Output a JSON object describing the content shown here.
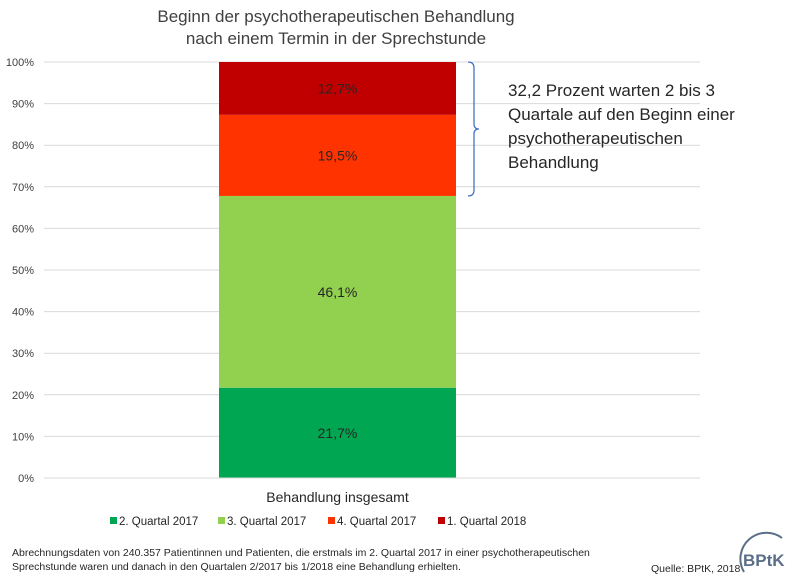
{
  "chart_data": {
    "type": "bar",
    "stacked": true,
    "title": [
      "Beginn der psychotherapeutischen Behandlung",
      "nach einem Termin in der Sprechstunde"
    ],
    "categories": [
      "Behandlung insgesamt"
    ],
    "xlabel": "",
    "ylabel": "",
    "ylim": [
      0,
      100
    ],
    "yticks": [
      "0%",
      "10%",
      "20%",
      "30%",
      "40%",
      "50%",
      "60%",
      "70%",
      "80%",
      "90%",
      "100%"
    ],
    "grid": true,
    "series": [
      {
        "name": "2. Quartal 2017",
        "values": [
          21.7
        ],
        "label": "21,7%",
        "color": "#00a651"
      },
      {
        "name": "3. Quartal 2017",
        "values": [
          46.1
        ],
        "label": "46,1%",
        "color": "#92d050"
      },
      {
        "name": "4. Quartal 2017",
        "values": [
          19.5
        ],
        "label": "19,5%",
        "color": "#ff3300"
      },
      {
        "name": "1. Quartal 2018",
        "values": [
          12.7
        ],
        "label": "12,7%",
        "color": "#c00000"
      }
    ],
    "legend_position": "bottom",
    "annotation": {
      "lines": [
        "32,2 Prozent warten 2 bis 3",
        "Quartale auf den Beginn einer",
        "psychotherapeutischen",
        "Behandlung"
      ],
      "spans_series": [
        "4. Quartal 2017",
        "1. Quartal 2018"
      ],
      "bracket_color": "#4472c4"
    }
  },
  "footnote": "Abrechnungsdaten von 240.357 Patientinnen und Patienten, die erstmals im 2. Quartal 2017 in einer psychotherapeutischen Sprechstunde waren und danach in den Quartalen 2/2017 bis 1/2018 eine Behandlung erhielten.",
  "source": "Quelle: BPtK, 2018",
  "logo": {
    "text": "BPtK",
    "color": "#5a6f87"
  }
}
